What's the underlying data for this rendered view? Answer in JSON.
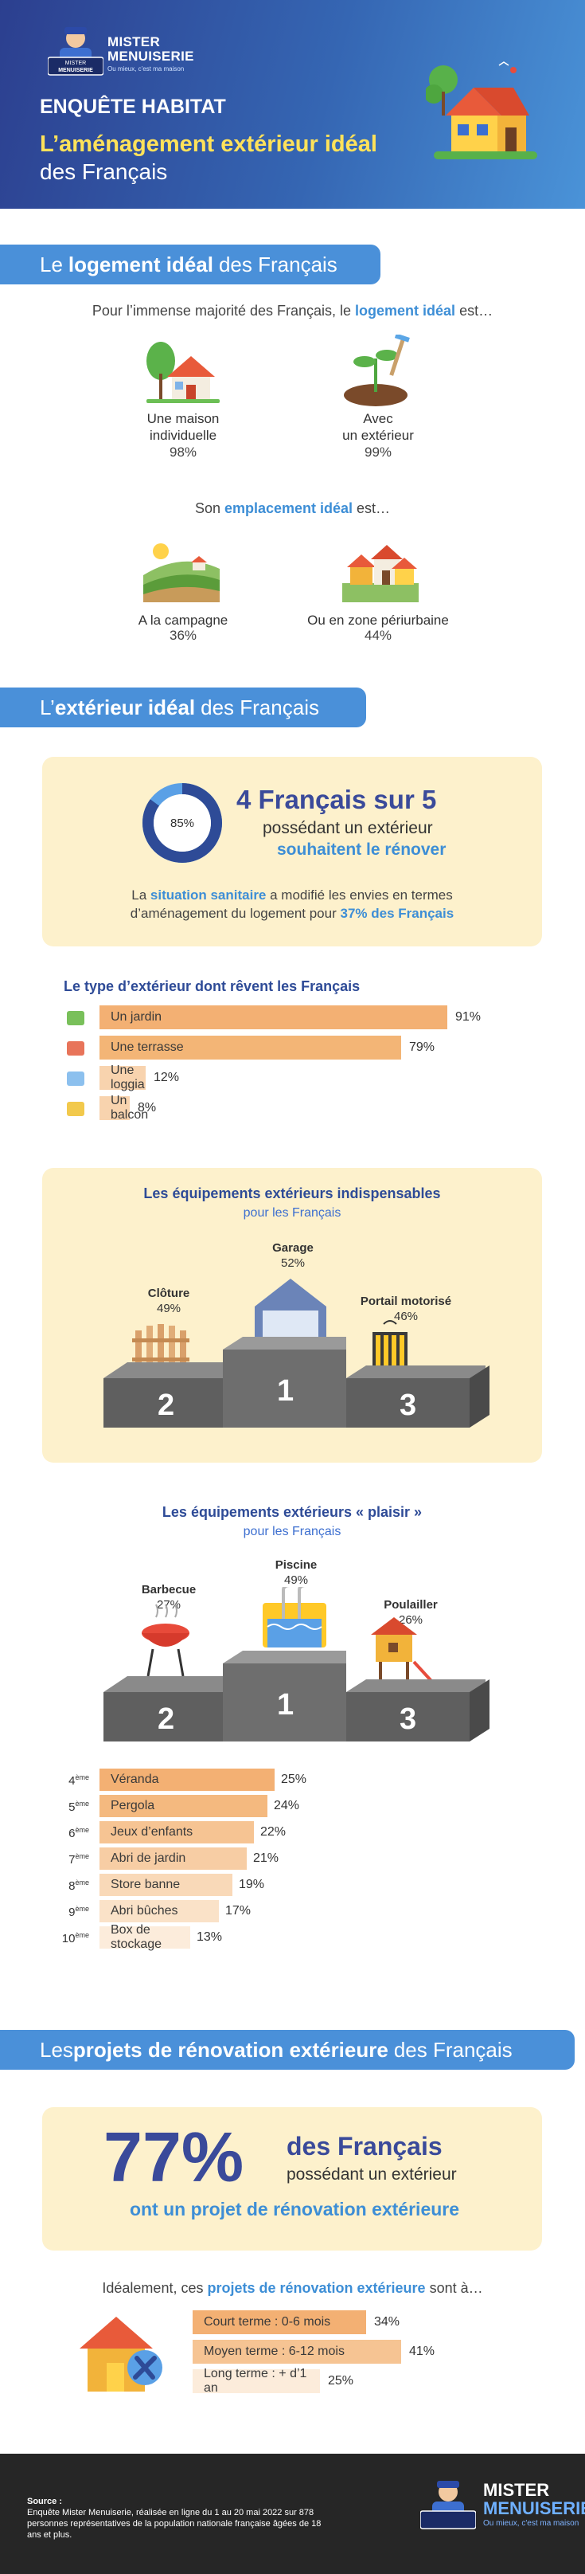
{
  "brand": {
    "line1": "MISTER",
    "line2": "MENUISERIE",
    "tagline": "Ou mieux, c'est ma maison",
    "badge_top": "MISTER",
    "badge_bottom": "MENUISERIE"
  },
  "header": {
    "kicker": "ENQUÊTE HABITAT",
    "title": "L’aménagement extérieur idéal",
    "subtitle": "des Français"
  },
  "s1": {
    "banner_pre": "Le ",
    "banner_bold": "logement idéal",
    "banner_post": " des Français",
    "intro_pre": "Pour l’immense majorité des Français, le ",
    "intro_hl": "logement idéal",
    "intro_post": " est…",
    "items": [
      {
        "label1": "Une maison",
        "label2": "individuelle",
        "pct": "98%"
      },
      {
        "label1": "Avec",
        "label2": "un extérieur",
        "pct": "99%"
      }
    ],
    "loc_pre": "Son ",
    "loc_hl": "emplacement idéal",
    "loc_post": " est…",
    "loc_items": [
      {
        "label": "A la campagne",
        "pct": "36%"
      },
      {
        "label": "Ou en zone périurbaine",
        "pct": "44%"
      }
    ]
  },
  "s2": {
    "banner_pre": "L’",
    "banner_bold": "extérieur idéal",
    "banner_post": " des Français",
    "donut": {
      "label": "85%",
      "value": 85
    },
    "stat_big": "4 Français sur 5",
    "stat_l2": "possédant un extérieur",
    "stat_l3": "souhaitent le rénover",
    "note_pre": "La ",
    "note_hl": "situation sanitaire",
    "note_mid": " a modifié les envies en termes",
    "note_l2_pre": "d’aménagement du logement pour ",
    "note_l2_hl": "37% des Français",
    "bars_title": "Le type d’extérieur dont rêvent les Français",
    "bars": [
      {
        "label": "Un jardin",
        "pct": "91%",
        "value": 91
      },
      {
        "label": "Une terrasse",
        "pct": "79%",
        "value": 79
      },
      {
        "label": "Une loggia",
        "pct": "12%",
        "value": 12
      },
      {
        "label": "Un balcon",
        "pct": "8%",
        "value": 8
      }
    ],
    "podium1": {
      "title": "Les équipements extérieurs indispensables",
      "subtitle": "pour les Français",
      "first": {
        "label": "Garage",
        "pct": "52%",
        "num": "1"
      },
      "second": {
        "label": "Clôture",
        "pct": "49%",
        "num": "2"
      },
      "third": {
        "label": "Portail motorisé",
        "pct": "46%",
        "num": "3"
      }
    },
    "podium2": {
      "title": "Les équipements extérieurs « plaisir »",
      "subtitle": "pour les Français",
      "first": {
        "label": "Piscine",
        "pct": "49%",
        "num": "1"
      },
      "second": {
        "label": "Barbecue",
        "pct": "27%",
        "num": "2"
      },
      "third": {
        "label": "Poulailler",
        "pct": "26%",
        "num": "3"
      }
    },
    "ranks": [
      {
        "n": "4",
        "sup": "ème",
        "label": "Véranda",
        "pct": "25%",
        "value": 25
      },
      {
        "n": "5",
        "sup": "ème",
        "label": "Pergola",
        "pct": "24%",
        "value": 24
      },
      {
        "n": "6",
        "sup": "ème",
        "label": "Jeux d’enfants",
        "pct": "22%",
        "value": 22
      },
      {
        "n": "7",
        "sup": "ème",
        "label": "Abri de jardin",
        "pct": "21%",
        "value": 21
      },
      {
        "n": "8",
        "sup": "ème",
        "label": "Store banne",
        "pct": "19%",
        "value": 19
      },
      {
        "n": "9",
        "sup": "ème",
        "label": "Abri bûches",
        "pct": "17%",
        "value": 17
      },
      {
        "n": "10",
        "sup": "ème",
        "label": "Box de stockage",
        "pct": "13%",
        "value": 13
      }
    ]
  },
  "s3": {
    "banner_pre": "Les ",
    "banner_bold": "projets de rénovation extérieure",
    "banner_post": " des Français",
    "big": "77%",
    "l1": "des Français",
    "l2": "possédant un extérieur",
    "l3": "ont un projet de rénovation extérieure",
    "intro_pre": "Idéalement, ces ",
    "intro_hl": "projets de rénovation extérieure",
    "intro_post": " sont à…",
    "bars": [
      {
        "label": "Court terme : 0-6 mois",
        "pct": "34%",
        "value": 34
      },
      {
        "label": "Moyen terme : 6-12 mois",
        "pct": "41%",
        "value": 41
      },
      {
        "label": "Long terme : + d’1 an",
        "pct": "25%",
        "value": 25
      }
    ]
  },
  "footer": {
    "source_title": "Source :",
    "source_text": "Enquête Mister Menuiserie, réalisée en ligne du 1 au 20 mai 2022 sur 878 personnes représentatives de la population nationale française âgées de 18 ans et plus.",
    "logo1": "MISTER",
    "logo2": "MENUISERIE",
    "tagline": "Ou mieux, c'est ma maison"
  },
  "colors": {
    "banner": "#4a90d9",
    "navy": "#2e4b97",
    "cream": "#fdf1cc",
    "orange": "#f3b073",
    "orange_light": "#f8d3ae",
    "yellow": "#ffe25a"
  }
}
